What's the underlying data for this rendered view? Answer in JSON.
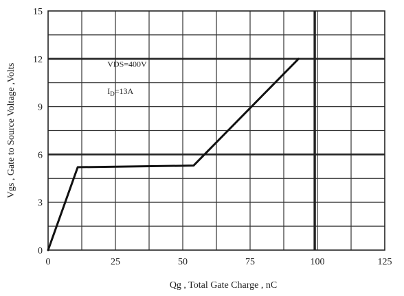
{
  "chart_data": {
    "type": "line",
    "xlabel": "Qg , Total Gate Charge , nC",
    "ylabel": "Vgs , Gate to Source Voltage ,Volts",
    "xlim": [
      0,
      125
    ],
    "ylim": [
      0,
      15
    ],
    "x_ticks": [
      "0",
      "25",
      "50",
      "75",
      "100",
      "125"
    ],
    "y_ticks": [
      "0",
      "3",
      "6",
      "9",
      "12",
      "15"
    ],
    "grid": true,
    "series": [
      {
        "x": [
          0,
          11,
          54,
          93
        ],
        "y": [
          0,
          5.2,
          5.3,
          12
        ]
      }
    ],
    "annotations": {
      "vds": {
        "text": "VDS=400V",
        "x": 22,
        "y": 11.5
      },
      "id": {
        "main": "I",
        "sub": "D",
        "rest": "=13A",
        "x": 22,
        "y": 9.8
      }
    },
    "reference_line_x": 99
  }
}
